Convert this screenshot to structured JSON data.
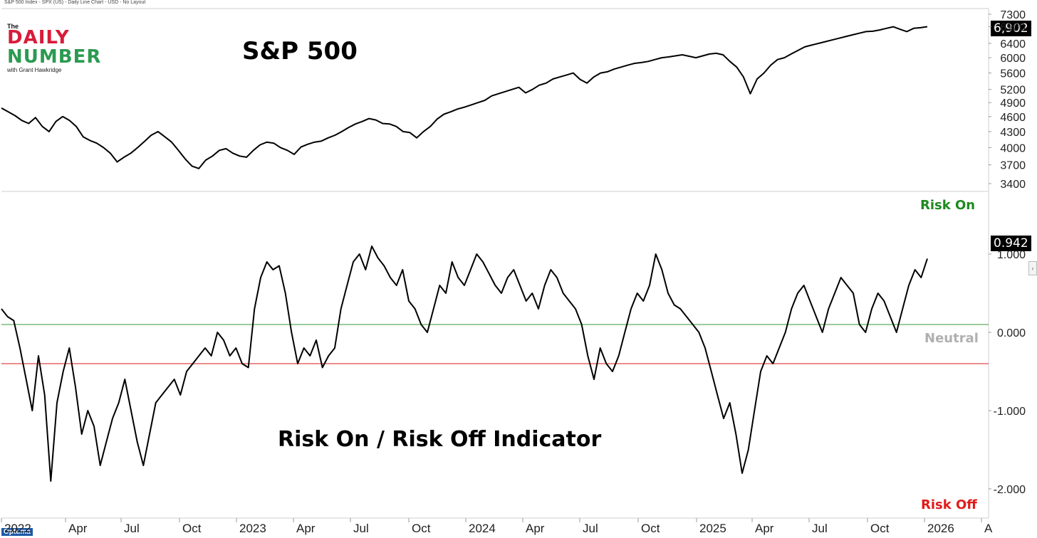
{
  "header": {
    "info": "S&P 500 Index - SPX (US) - Daily Line Chart - USD - No Layout"
  },
  "logo": {
    "the": "The",
    "daily": "DAILY",
    "number": "NUMBER",
    "byline": "with Grant Hawkridge"
  },
  "footer": {
    "brand": "Optuma",
    "collapse_icon": "chevron-left-icon"
  },
  "colors": {
    "line": "#000000",
    "risk_on": "#1e8a1e",
    "risk_off": "#e01b1b",
    "neutral": "#b0b0b0",
    "green_line": "#5fae5f",
    "red_line": "#e04848"
  },
  "chart_data": [
    {
      "type": "line",
      "title": "S&P 500",
      "ylim": [
        3400,
        7300
      ],
      "y_ticks": [
        "7300",
        "6900",
        "6400",
        "6000",
        "5600",
        "5200",
        "4900",
        "4600",
        "4300",
        "4000",
        "3700",
        "3400"
      ],
      "last_value_label": "6,902",
      "series": [
        {
          "values": [
            4780,
            4700,
            4620,
            4520,
            4460,
            4580,
            4400,
            4300,
            4500,
            4600,
            4520,
            4400,
            4200,
            4130,
            4080,
            4000,
            3900,
            3750,
            3830,
            3900,
            4000,
            4110,
            4230,
            4300,
            4200,
            4100,
            3950,
            3800,
            3680,
            3640,
            3780,
            3850,
            3950,
            3980,
            3900,
            3850,
            3830,
            3950,
            4050,
            4100,
            4080,
            4000,
            3950,
            3880,
            4010,
            4060,
            4100,
            4120,
            4180,
            4230,
            4300,
            4380,
            4450,
            4500,
            4560,
            4530,
            4460,
            4450,
            4400,
            4300,
            4280,
            4180,
            4300,
            4400,
            4550,
            4650,
            4700,
            4760,
            4800,
            4850,
            4900,
            4950,
            5050,
            5100,
            5150,
            5200,
            5250,
            5120,
            5200,
            5300,
            5350,
            5450,
            5500,
            5550,
            5600,
            5440,
            5350,
            5500,
            5600,
            5630,
            5700,
            5750,
            5800,
            5850,
            5870,
            5900,
            5950,
            6000,
            6020,
            6050,
            6080,
            6040,
            6000,
            6050,
            6100,
            6120,
            6080,
            5900,
            5750,
            5500,
            5100,
            5450,
            5600,
            5800,
            5950,
            6000,
            6100,
            6200,
            6300,
            6350,
            6400,
            6450,
            6500,
            6550,
            6600,
            6650,
            6700,
            6750,
            6760,
            6800,
            6850,
            6900,
            6820,
            6750,
            6850,
            6870,
            6902
          ]
        }
      ]
    },
    {
      "type": "line",
      "title": "Risk On / Risk Off Indicator",
      "ylim": [
        -2.3,
        1.7
      ],
      "y_ticks": [
        "1.000",
        "0.000",
        "-1.000",
        "-2.000"
      ],
      "last_value_label": "0.942",
      "reference_lines": [
        0.1,
        -0.4
      ],
      "annotations": {
        "top": "Risk On",
        "middle": "Neutral",
        "bottom": "Risk Off"
      },
      "series": [
        {
          "values": [
            0.3,
            0.2,
            0.15,
            -0.2,
            -0.6,
            -1.0,
            -0.3,
            -0.8,
            -1.9,
            -0.9,
            -0.5,
            -0.2,
            -0.7,
            -1.3,
            -1.0,
            -1.2,
            -1.7,
            -1.4,
            -1.1,
            -0.9,
            -0.6,
            -1.0,
            -1.4,
            -1.7,
            -1.3,
            -0.9,
            -0.8,
            -0.7,
            -0.6,
            -0.8,
            -0.5,
            -0.4,
            -0.3,
            -0.2,
            -0.3,
            0.0,
            -0.1,
            -0.3,
            -0.2,
            -0.4,
            -0.45,
            0.3,
            0.7,
            0.9,
            0.8,
            0.85,
            0.5,
            0.0,
            -0.4,
            -0.2,
            -0.3,
            -0.1,
            -0.45,
            -0.3,
            -0.2,
            0.3,
            0.6,
            0.9,
            1.0,
            0.8,
            1.1,
            0.95,
            0.85,
            0.7,
            0.6,
            0.8,
            0.4,
            0.3,
            0.1,
            0.0,
            0.3,
            0.6,
            0.5,
            0.9,
            0.7,
            0.6,
            0.8,
            1.0,
            0.9,
            0.75,
            0.6,
            0.5,
            0.7,
            0.8,
            0.6,
            0.4,
            0.5,
            0.3,
            0.6,
            0.8,
            0.7,
            0.5,
            0.4,
            0.3,
            0.1,
            -0.3,
            -0.6,
            -0.2,
            -0.4,
            -0.5,
            -0.3,
            0.0,
            0.3,
            0.5,
            0.4,
            0.6,
            1.0,
            0.8,
            0.5,
            0.35,
            0.3,
            0.2,
            0.1,
            0.0,
            -0.2,
            -0.5,
            -0.8,
            -1.1,
            -0.9,
            -1.3,
            -1.8,
            -1.5,
            -1.0,
            -0.5,
            -0.3,
            -0.4,
            -0.2,
            0.0,
            0.3,
            0.5,
            0.6,
            0.4,
            0.2,
            0.0,
            0.3,
            0.5,
            0.7,
            0.6,
            0.5,
            0.1,
            0.0,
            0.3,
            0.5,
            0.4,
            0.2,
            0.0,
            0.3,
            0.6,
            0.8,
            0.7,
            0.942
          ]
        }
      ]
    }
  ],
  "x_axis": {
    "labels": [
      "2022",
      "Apr",
      "Jul",
      "Oct",
      "2023",
      "Apr",
      "Jul",
      "Oct",
      "2024",
      "Apr",
      "Jul",
      "Oct",
      "2025",
      "Apr",
      "Jul",
      "Oct",
      "2026",
      "A"
    ]
  }
}
